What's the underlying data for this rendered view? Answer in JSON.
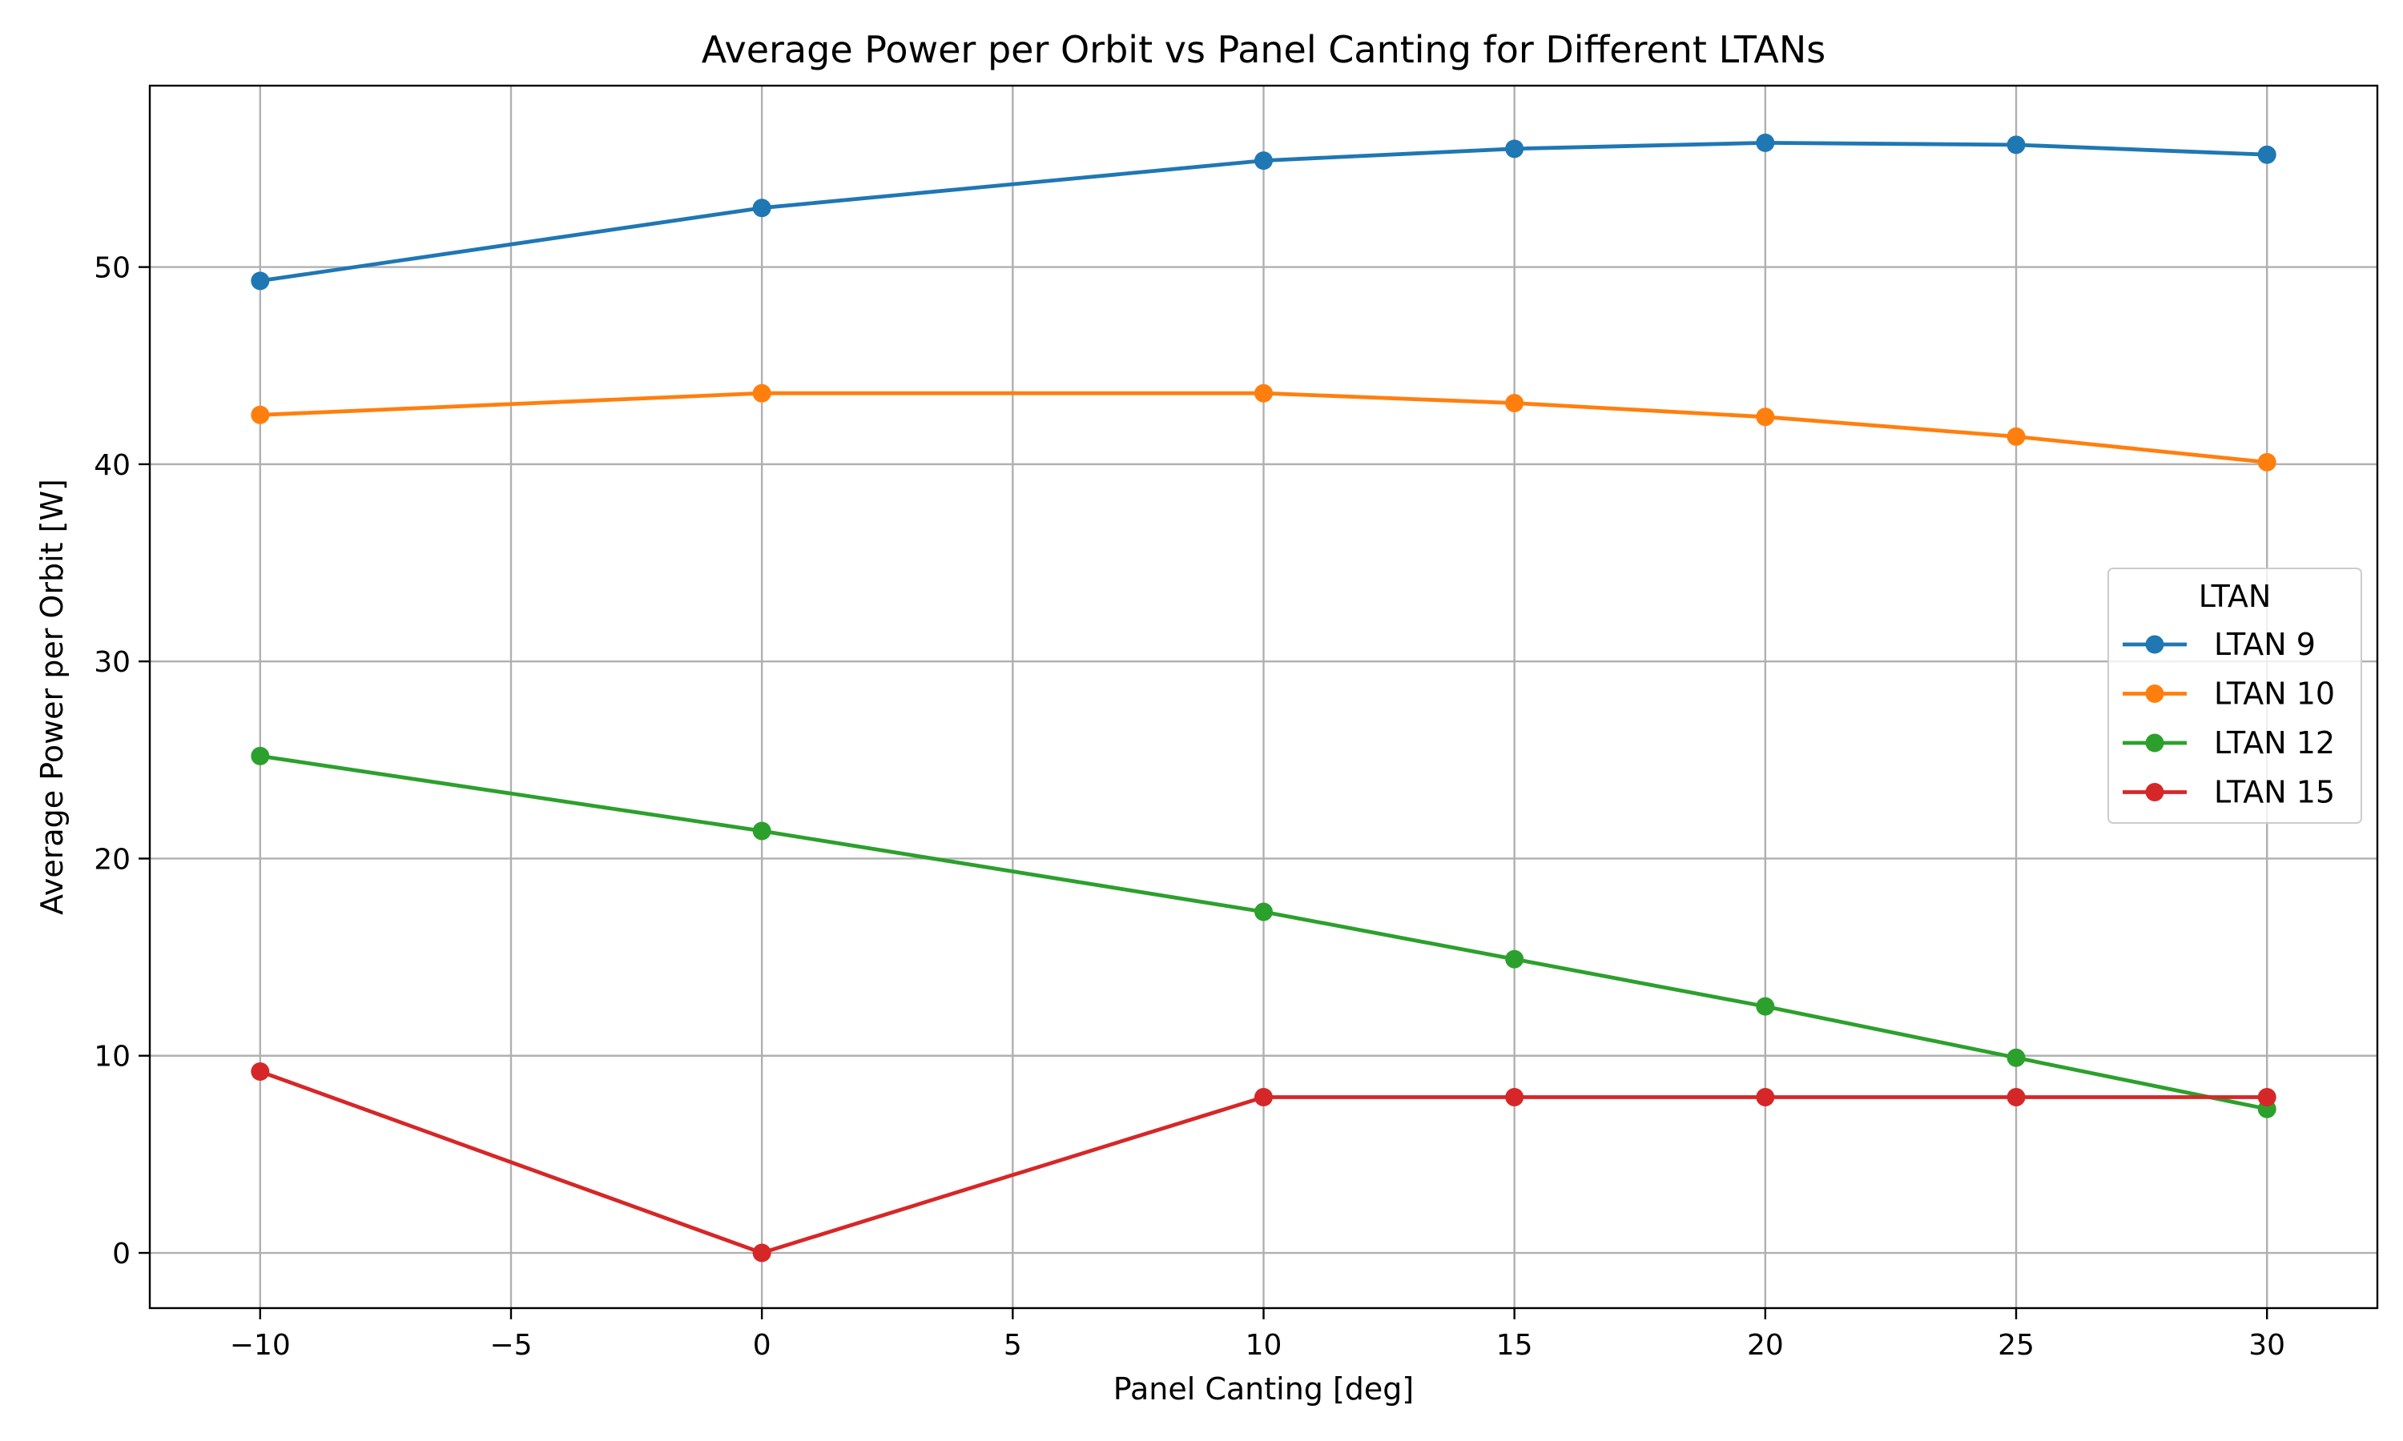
{
  "chart_data": {
    "type": "line",
    "title": "Average Power per Orbit vs Panel Canting for Different LTANs",
    "xlabel": "Panel Canting [deg]",
    "ylabel": "Average Power per Orbit [W]",
    "xlim": [
      -12.2,
      32.2
    ],
    "ylim": [
      -2.8,
      59.2
    ],
    "grid": true,
    "x_ticks": [
      -10,
      -5,
      0,
      5,
      10,
      15,
      20,
      25,
      30
    ],
    "x_tick_labels": [
      "−10",
      "−5",
      "0",
      "5",
      "10",
      "15",
      "20",
      "25",
      "30"
    ],
    "y_ticks": [
      0,
      10,
      20,
      30,
      40,
      50
    ],
    "y_tick_labels": [
      "0",
      "10",
      "20",
      "30",
      "40",
      "50"
    ],
    "legend": {
      "title": "LTAN",
      "placement": "center-right"
    },
    "x": [
      -10,
      0,
      10,
      15,
      20,
      25,
      30
    ],
    "series": [
      {
        "name": "LTAN 9",
        "color": "#1f77b4",
        "values": [
          49.3,
          53.0,
          55.4,
          56.0,
          56.3,
          56.2,
          55.7
        ]
      },
      {
        "name": "LTAN 10",
        "color": "#ff7f0e",
        "values": [
          42.5,
          43.6,
          43.6,
          43.1,
          42.4,
          41.4,
          40.1
        ]
      },
      {
        "name": "LTAN 12",
        "color": "#2ca02c",
        "values": [
          25.2,
          21.4,
          17.3,
          14.9,
          12.5,
          9.9,
          7.3
        ]
      },
      {
        "name": "LTAN 15",
        "color": "#d62728",
        "values": [
          9.2,
          0.0,
          7.9,
          7.9,
          7.9,
          7.9,
          7.9
        ]
      }
    ]
  }
}
